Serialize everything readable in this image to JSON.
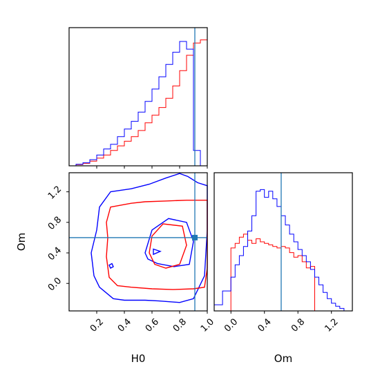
{
  "colors": {
    "series_a": "#ff0000",
    "series_b": "#0000ff",
    "truth": "#1f77b4"
  },
  "chart_data": [
    {
      "type": "histogram",
      "panel": "H0 marginal",
      "x_range": [
        0.0,
        1.0
      ],
      "bins": [
        0.0,
        0.05,
        0.1,
        0.15,
        0.2,
        0.25,
        0.3,
        0.35,
        0.4,
        0.45,
        0.5,
        0.55,
        0.6,
        0.65,
        0.7,
        0.75,
        0.8,
        0.85,
        0.9,
        0.95,
        1.0
      ],
      "series": [
        {
          "color": "red",
          "values": [
            0,
            0.4,
            0.8,
            1.5,
            2.5,
            3.5,
            5.0,
            6.5,
            8.0,
            9.5,
            11.5,
            14.0,
            16.5,
            19.0,
            22.0,
            26.0,
            31.0,
            36.0,
            40.0,
            41.0,
            0
          ]
        },
        {
          "color": "blue",
          "values": [
            0,
            0.5,
            1.0,
            2.0,
            3.5,
            5.5,
            7.0,
            9.5,
            12.0,
            14.5,
            17.5,
            21.0,
            25.0,
            29.0,
            33.0,
            37.0,
            40.5,
            38.0,
            5.0,
            0,
            0
          ]
        }
      ],
      "truth_x": 0.91,
      "xticks": [
        "0.2",
        "0.4",
        "0.6",
        "0.8",
        "1.0"
      ]
    },
    {
      "type": "contour",
      "panel": "H0 vs Om",
      "xlabel": "H0",
      "ylabel": "Om",
      "x_range": [
        0.0,
        1.0
      ],
      "y_range": [
        -0.36,
        1.45
      ],
      "xticks": [
        "0.2",
        "0.4",
        "0.6",
        "0.8",
        "1.0"
      ],
      "yticks": [
        "0.0",
        "0.4",
        "0.8",
        "1.2"
      ],
      "truth": {
        "x": 0.91,
        "y": 0.6
      },
      "series": [
        {
          "color": "blue",
          "contours": [
            [
              [
                0.3,
                1.2
              ],
              [
                0.45,
                1.24
              ],
              [
                0.58,
                1.3
              ],
              [
                0.7,
                1.38
              ],
              [
                0.8,
                1.44
              ],
              [
                0.86,
                1.4
              ],
              [
                0.93,
                1.32
              ],
              [
                1.0,
                1.28
              ],
              [
                1.0,
                0.7
              ],
              [
                0.99,
                0.4
              ],
              [
                0.98,
                0.1
              ],
              [
                0.9,
                -0.2
              ],
              [
                0.8,
                -0.25
              ],
              [
                0.65,
                -0.23
              ],
              [
                0.55,
                -0.22
              ],
              [
                0.4,
                -0.22
              ],
              [
                0.32,
                -0.2
              ],
              [
                0.22,
                -0.05
              ],
              [
                0.18,
                0.1
              ],
              [
                0.16,
                0.4
              ],
              [
                0.2,
                0.7
              ],
              [
                0.22,
                1.0
              ]
            ],
            [
              [
                0.55,
                0.4
              ],
              [
                0.6,
                0.7
              ],
              [
                0.72,
                0.85
              ],
              [
                0.85,
                0.8
              ],
              [
                0.9,
                0.55
              ],
              [
                0.87,
                0.25
              ],
              [
                0.76,
                0.22
              ],
              [
                0.64,
                0.26
              ],
              [
                0.57,
                0.32
              ]
            ],
            [
              [
                0.61,
                0.45
              ],
              [
                0.66,
                0.42
              ],
              [
                0.61,
                0.38
              ]
            ],
            [
              [
                0.29,
                0.24
              ],
              [
                0.31,
                0.26
              ],
              [
                0.32,
                0.22
              ],
              [
                0.3,
                0.2
              ]
            ]
          ]
        },
        {
          "color": "red",
          "contours": [
            [
              [
                0.3,
                1.0
              ],
              [
                0.45,
                1.05
              ],
              [
                0.55,
                1.07
              ],
              [
                0.7,
                1.08
              ],
              [
                0.85,
                1.09
              ],
              [
                1.0,
                1.09
              ],
              [
                1.0,
                0.6
              ],
              [
                1.0,
                0.2
              ],
              [
                0.98,
                -0.05
              ],
              [
                0.9,
                -0.07
              ],
              [
                0.75,
                -0.08
              ],
              [
                0.6,
                -0.07
              ],
              [
                0.45,
                -0.05
              ],
              [
                0.35,
                -0.03
              ],
              [
                0.29,
                0.08
              ],
              [
                0.27,
                0.35
              ],
              [
                0.28,
                0.6
              ],
              [
                0.27,
                0.8
              ]
            ],
            [
              [
                0.58,
                0.4
              ],
              [
                0.6,
                0.62
              ],
              [
                0.68,
                0.78
              ],
              [
                0.82,
                0.75
              ],
              [
                0.85,
                0.5
              ],
              [
                0.8,
                0.25
              ],
              [
                0.7,
                0.2
              ],
              [
                0.62,
                0.25
              ]
            ]
          ]
        }
      ]
    },
    {
      "type": "histogram",
      "panel": "Om marginal",
      "xlabel": "Om",
      "x_range": [
        -0.2,
        1.45
      ],
      "bins": [
        -0.2,
        -0.1,
        0.0,
        0.05,
        0.1,
        0.15,
        0.2,
        0.25,
        0.3,
        0.35,
        0.4,
        0.45,
        0.5,
        0.55,
        0.6,
        0.65,
        0.7,
        0.75,
        0.8,
        0.85,
        0.9,
        0.95,
        1.0,
        1.05,
        1.1,
        1.15,
        1.2,
        1.25,
        1.3,
        1.35,
        1.45
      ],
      "series": [
        {
          "color": "red",
          "values": [
            0,
            0,
            20.5,
            22.0,
            24.0,
            25.0,
            23.0,
            22.0,
            23.5,
            22.5,
            22.0,
            21.5,
            21.0,
            20.5,
            21.0,
            20.5,
            19.0,
            17.5,
            18.0,
            16.0,
            14.0,
            14.5,
            0,
            0,
            0,
            0,
            0,
            0,
            0,
            0
          ]
        },
        {
          "color": "blue",
          "values": [
            2.0,
            6.5,
            11.0,
            15.0,
            18.0,
            21.0,
            26.0,
            31.0,
            39.0,
            39.5,
            37.0,
            39.0,
            36.5,
            34.0,
            31.0,
            28.0,
            25.0,
            22.5,
            20.0,
            18.0,
            16.0,
            13.5,
            11.0,
            8.5,
            6.0,
            4.0,
            2.5,
            1.5,
            0.8,
            0
          ]
        }
      ],
      "truth_x": 0.6,
      "xticks": [
        "0.0",
        "0.4",
        "0.8",
        "1.2"
      ]
    }
  ]
}
